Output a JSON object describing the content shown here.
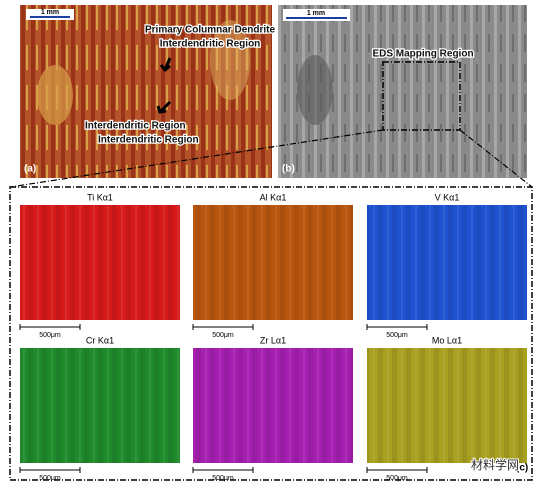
{
  "panel_a": {
    "scale": "1 mm",
    "annotation_1": "Primary Columnar Dendrite",
    "annotation_2": "Interdendritic Region",
    "label": "(a)"
  },
  "panel_b": {
    "scale": "1 mm",
    "annotation": "EDS Mapping Region",
    "label": "(b)"
  },
  "panel_c": {
    "label": "(c)",
    "maps": [
      {
        "element": "Ti Kα1",
        "scale": "500μm",
        "color": "#d61a1a"
      },
      {
        "element": "Al Kα1",
        "scale": "500μm",
        "color": "#b8560f"
      },
      {
        "element": "V Kα1",
        "scale": "500μm",
        "color": "#1f52d0"
      },
      {
        "element": "Cr Kα1",
        "scale": "500μm",
        "color": "#1f8a2a"
      },
      {
        "element": "Zr Lα1",
        "scale": "500μm",
        "color": "#a51fb0"
      },
      {
        "element": "Mo Lα1",
        "scale": "500μm",
        "color": "#a8a020"
      }
    ]
  },
  "watermark": "材料学网"
}
